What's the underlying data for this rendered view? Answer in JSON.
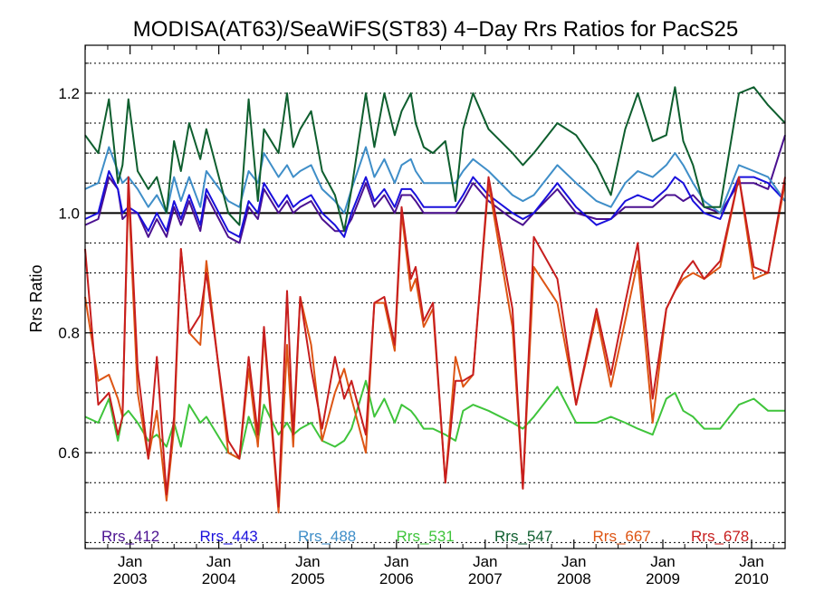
{
  "chart_data": {
    "type": "line",
    "title": "MODISA(AT63)/SeaWiFS(ST83) 4−Day Rrs Ratios for PacS25",
    "xlabel": "",
    "ylabel": "Rrs Ratio",
    "xlim": [
      "2002-06-30",
      "2010-05-19"
    ],
    "ylim": [
      0.44,
      1.28
    ],
    "grid": "dotted-horizontal",
    "yticks": [
      {
        "value": 0.6,
        "label": "0.6"
      },
      {
        "value": 0.8,
        "label": "0.8"
      },
      {
        "value": 1.0,
        "label": "1.0"
      },
      {
        "value": 1.2,
        "label": "1.2"
      }
    ],
    "xticks": [
      {
        "date": "2003-01-01",
        "month": "Jan",
        "year": "2003"
      },
      {
        "date": "2004-01-01",
        "month": "Jan",
        "year": "2004"
      },
      {
        "date": "2005-01-01",
        "month": "Jan",
        "year": "2005"
      },
      {
        "date": "2006-01-01",
        "month": "Jan",
        "year": "2006"
      },
      {
        "date": "2007-01-01",
        "month": "Jan",
        "year": "2007"
      },
      {
        "date": "2008-01-01",
        "month": "Jan",
        "year": "2008"
      },
      {
        "date": "2009-01-01",
        "month": "Jan",
        "year": "2009"
      },
      {
        "date": "2010-01-01",
        "month": "Jan",
        "year": "2010"
      }
    ],
    "reference_line": 1.0,
    "legend_placement": "bottom",
    "x": [
      "2002-06-30",
      "2002-08-23",
      "2002-10-06",
      "2002-11-12",
      "2002-12-01",
      "2002-12-25",
      "2003-02-01",
      "2003-03-17",
      "2003-04-21",
      "2003-05-31",
      "2003-07-01",
      "2003-07-29",
      "2003-09-01",
      "2003-10-17",
      "2003-11-11",
      "2004-02-09",
      "2004-03-26",
      "2004-05-03",
      "2004-06-10",
      "2004-07-05",
      "2004-09-03",
      "2004-10-08",
      "2004-11-02",
      "2004-12-01",
      "2005-01-15",
      "2005-03-01",
      "2005-04-23",
      "2005-05-31",
      "2005-06-30",
      "2005-08-28",
      "2005-10-02",
      "2005-11-12",
      "2005-12-25",
      "2006-01-22",
      "2006-03-01",
      "2006-03-21",
      "2006-04-23",
      "2006-05-31",
      "2006-07-21",
      "2006-09-01",
      "2006-10-02",
      "2006-11-12",
      "2007-01-15",
      "2007-04-23",
      "2007-06-05",
      "2007-07-20",
      "2007-10-25",
      "2008-01-10",
      "2008-04-03",
      "2008-06-01",
      "2008-07-30",
      "2008-09-20",
      "2008-11-20",
      "2009-01-15",
      "2009-02-20",
      "2009-03-26",
      "2009-05-05",
      "2009-06-20",
      "2009-08-25",
      "2009-11-10",
      "2010-01-10",
      "2010-03-10",
      "2010-05-19"
    ],
    "series": [
      {
        "name": "Rrs_412",
        "color": "#4b1190",
        "values": [
          0.98,
          0.99,
          1.06,
          1.04,
          0.99,
          1.0,
          1.0,
          0.96,
          0.99,
          0.96,
          1.01,
          0.98,
          1.02,
          0.97,
          1.03,
          0.96,
          0.95,
          1.01,
          0.99,
          1.04,
          1.0,
          1.02,
          1.0,
          1.01,
          1.02,
          0.99,
          0.97,
          0.97,
          0.99,
          1.05,
          1.01,
          1.03,
          1.0,
          1.03,
          1.03,
          1.02,
          1.0,
          1.0,
          1.0,
          1.0,
          1.02,
          1.05,
          1.02,
          0.99,
          0.98,
          1.0,
          1.04,
          1.0,
          0.99,
          0.99,
          1.01,
          1.01,
          1.01,
          1.03,
          1.03,
          1.02,
          1.03,
          1.01,
          1.0,
          1.05,
          1.05,
          1.04,
          1.13
        ]
      },
      {
        "name": "Rrs_443",
        "color": "#1a10dc",
        "values": [
          0.99,
          1.0,
          1.07,
          1.04,
          1.0,
          1.01,
          1.0,
          0.97,
          1.0,
          0.97,
          1.02,
          0.99,
          1.03,
          0.98,
          1.04,
          0.97,
          0.96,
          1.02,
          1.0,
          1.05,
          1.01,
          1.03,
          1.01,
          1.02,
          1.03,
          1.0,
          0.98,
          0.96,
          1.0,
          1.06,
          1.02,
          1.04,
          1.01,
          1.04,
          1.04,
          1.03,
          1.01,
          1.01,
          1.01,
          1.01,
          1.03,
          1.06,
          1.03,
          1.0,
          0.99,
          1.0,
          1.05,
          1.01,
          0.98,
          0.99,
          1.02,
          1.03,
          1.02,
          1.04,
          1.06,
          1.05,
          1.02,
          1.0,
          0.99,
          1.06,
          1.06,
          1.05,
          1.02
        ]
      },
      {
        "name": "Rrs_488",
        "color": "#3f8ec8",
        "values": [
          1.04,
          1.05,
          1.11,
          1.07,
          1.05,
          1.06,
          1.04,
          1.01,
          1.03,
          1.0,
          1.06,
          1.02,
          1.06,
          1.01,
          1.07,
          1.02,
          1.01,
          1.07,
          1.05,
          1.1,
          1.06,
          1.08,
          1.06,
          1.07,
          1.08,
          1.04,
          1.02,
          1.0,
          1.04,
          1.11,
          1.06,
          1.09,
          1.05,
          1.08,
          1.09,
          1.07,
          1.05,
          1.05,
          1.05,
          1.05,
          1.07,
          1.09,
          1.07,
          1.03,
          1.02,
          1.03,
          1.08,
          1.05,
          1.02,
          1.01,
          1.05,
          1.07,
          1.06,
          1.08,
          1.1,
          1.08,
          1.05,
          1.02,
          1.0,
          1.08,
          1.07,
          1.06,
          1.02
        ]
      },
      {
        "name": "Rrs_531",
        "color": "#3fc43b",
        "values": [
          0.66,
          0.65,
          0.69,
          0.62,
          0.66,
          0.67,
          0.65,
          0.62,
          0.63,
          0.61,
          0.65,
          0.61,
          0.68,
          0.65,
          0.66,
          0.6,
          0.59,
          0.66,
          0.62,
          0.68,
          0.63,
          0.65,
          0.63,
          0.64,
          0.65,
          0.62,
          0.61,
          0.62,
          0.64,
          0.72,
          0.66,
          0.69,
          0.65,
          0.68,
          0.67,
          0.66,
          0.64,
          0.64,
          0.63,
          0.62,
          0.67,
          0.68,
          0.67,
          0.65,
          0.64,
          0.66,
          0.71,
          0.65,
          0.65,
          0.66,
          0.65,
          0.64,
          0.63,
          0.69,
          0.7,
          0.67,
          0.66,
          0.64,
          0.64,
          0.68,
          0.69,
          0.67,
          0.67
        ]
      },
      {
        "name": "Rrs_547",
        "color": "#0e5e2e",
        "values": [
          1.13,
          1.1,
          1.19,
          1.05,
          1.08,
          1.19,
          1.07,
          1.04,
          1.06,
          1.0,
          1.12,
          1.07,
          1.15,
          1.09,
          1.14,
          1.0,
          0.98,
          1.19,
          1.02,
          1.14,
          1.1,
          1.2,
          1.11,
          1.14,
          1.17,
          1.07,
          1.03,
          0.97,
          1.04,
          1.2,
          1.11,
          1.2,
          1.13,
          1.17,
          1.2,
          1.15,
          1.11,
          1.1,
          1.12,
          1.02,
          1.14,
          1.2,
          1.14,
          1.1,
          1.08,
          1.1,
          1.15,
          1.13,
          1.08,
          1.03,
          1.14,
          1.2,
          1.12,
          1.13,
          1.21,
          1.12,
          1.08,
          1.01,
          1.01,
          1.2,
          1.21,
          1.18,
          1.15
        ]
      },
      {
        "name": "Rrs_667",
        "color": "#dd5514",
        "values": [
          0.86,
          0.72,
          0.73,
          0.69,
          0.66,
          1.04,
          0.7,
          0.59,
          0.67,
          0.52,
          0.64,
          0.94,
          0.8,
          0.78,
          0.92,
          0.6,
          0.59,
          0.74,
          0.61,
          0.8,
          0.5,
          0.78,
          0.61,
          0.86,
          0.78,
          0.62,
          0.7,
          0.74,
          0.69,
          0.6,
          0.85,
          0.85,
          0.77,
          1.0,
          0.87,
          0.89,
          0.81,
          0.84,
          0.55,
          0.76,
          0.71,
          0.73,
          1.05,
          0.81,
          0.54,
          0.91,
          0.85,
          0.68,
          0.83,
          0.71,
          0.82,
          0.92,
          0.65,
          0.84,
          0.87,
          0.89,
          0.9,
          0.89,
          0.91,
          1.06,
          0.89,
          0.9,
          1.05
        ]
      },
      {
        "name": "Rrs_678",
        "color": "#c71e1e",
        "values": [
          0.94,
          0.68,
          0.7,
          0.63,
          0.66,
          1.06,
          0.74,
          0.59,
          0.76,
          0.53,
          0.66,
          0.94,
          0.8,
          0.83,
          0.9,
          0.62,
          0.59,
          0.76,
          0.63,
          0.81,
          0.51,
          0.87,
          0.63,
          0.86,
          0.74,
          0.64,
          0.76,
          0.69,
          0.72,
          0.63,
          0.85,
          0.86,
          0.78,
          1.01,
          0.89,
          0.91,
          0.82,
          0.85,
          0.55,
          0.72,
          0.72,
          0.73,
          1.06,
          0.84,
          0.54,
          0.96,
          0.89,
          0.68,
          0.84,
          0.73,
          0.85,
          0.95,
          0.69,
          0.84,
          0.87,
          0.9,
          0.92,
          0.89,
          0.92,
          1.06,
          0.91,
          0.9,
          1.06
        ]
      }
    ]
  }
}
